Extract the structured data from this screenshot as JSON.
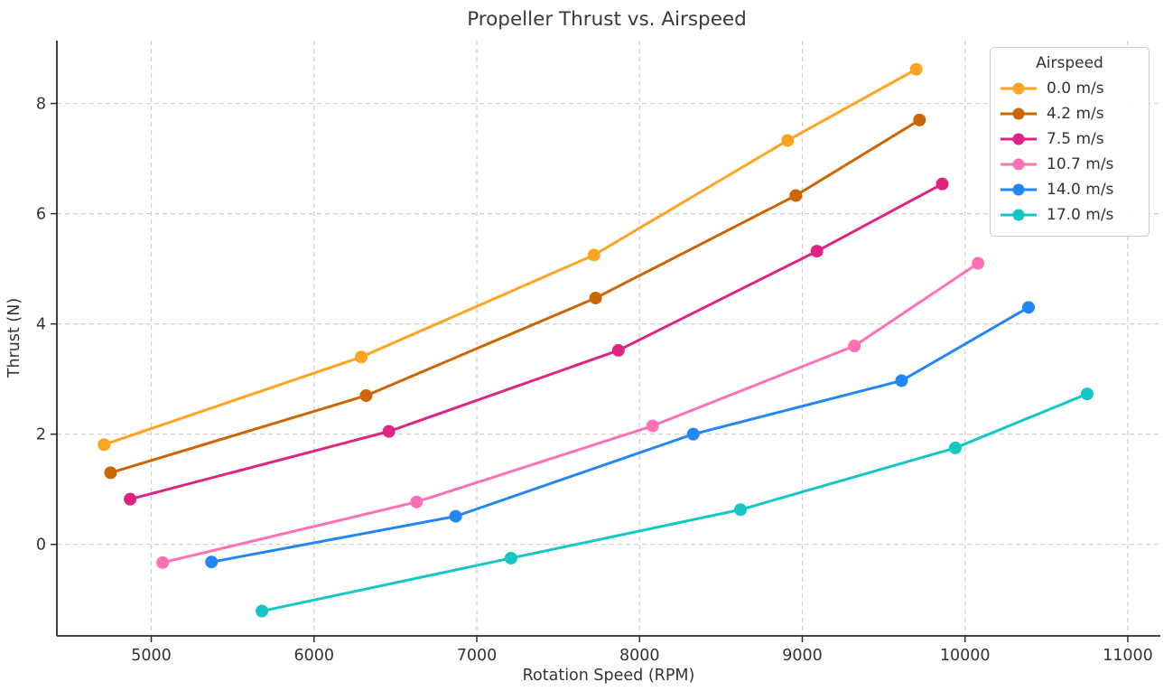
{
  "title": "Propeller Thrust vs. Airspeed",
  "chart_data": {
    "type": "line",
    "title": "Propeller Thrust vs. Airspeed",
    "xlabel": "Rotation Speed (RPM)",
    "ylabel": "Thrust (N)",
    "xlim": [
      4420,
      11200
    ],
    "ylim": [
      -1.66,
      9.14
    ],
    "xticks": [
      5000,
      6000,
      7000,
      8000,
      9000,
      10000,
      11000
    ],
    "yticks": [
      0,
      2,
      4,
      6,
      8
    ],
    "grid": true,
    "legend": {
      "title": "Airspeed",
      "position": "upper right"
    },
    "series": [
      {
        "name": "0.0 m/s",
        "color": "#FFA420",
        "x": [
          4710,
          6290,
          7720,
          8910,
          9700
        ],
        "y": [
          1.81,
          3.4,
          5.25,
          7.33,
          8.62
        ]
      },
      {
        "name": "4.2 m/s",
        "color": "#CB6602",
        "x": [
          4750,
          6320,
          7730,
          8960,
          9720
        ],
        "y": [
          1.3,
          2.7,
          4.47,
          6.33,
          7.7
        ]
      },
      {
        "name": "7.5 m/s",
        "color": "#DE2383",
        "x": [
          4870,
          6460,
          7870,
          9090,
          9860
        ],
        "y": [
          0.82,
          2.05,
          3.52,
          5.32,
          6.54
        ]
      },
      {
        "name": "10.7 m/s",
        "color": "#FF70B5",
        "x": [
          5070,
          6630,
          8080,
          9320,
          10080
        ],
        "y": [
          -0.33,
          0.77,
          2.15,
          3.6,
          5.1
        ]
      },
      {
        "name": "14.0 m/s",
        "color": "#2287F5",
        "x": [
          5370,
          6870,
          8330,
          9610,
          10390
        ],
        "y": [
          -0.32,
          0.51,
          2.0,
          2.97,
          4.3
        ]
      },
      {
        "name": "17.0 m/s",
        "color": "#12C7C4",
        "x": [
          5680,
          7210,
          8620,
          9940,
          10750
        ],
        "y": [
          -1.21,
          -0.25,
          0.63,
          1.75,
          2.73
        ]
      }
    ],
    "style": {
      "grid_color": "#cdcdcd",
      "spine_color": "#2b2b2b",
      "tick_label_color": "#333333",
      "title_color": "#3a3a3a"
    }
  }
}
